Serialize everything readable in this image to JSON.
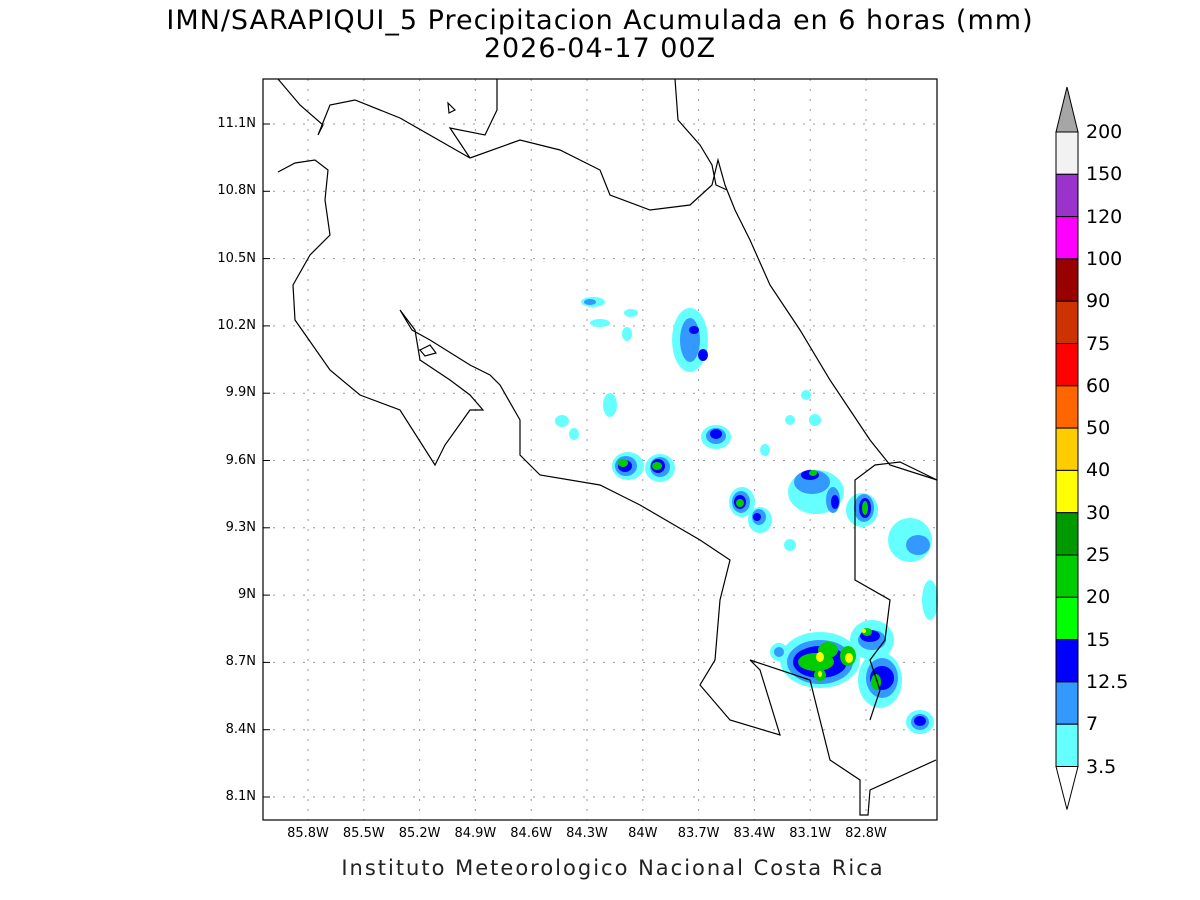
{
  "title": "IMN/SARAPIQUI_5 Precipitacion Acumulada en 6 horas (mm)",
  "subtitle": "2026-04-17 00Z",
  "footer": "Instituto Meteorologico Nacional Costa Rica",
  "lat_ticks": [
    "11.1N",
    "10.8N",
    "10.5N",
    "10.2N",
    "9.9N",
    "9.6N",
    "9.3N",
    "9N",
    "8.7N",
    "8.4N",
    "8.1N"
  ],
  "lon_ticks": [
    "85.8W",
    "85.5W",
    "85.2W",
    "84.9W",
    "84.6W",
    "84.3W",
    "84W",
    "83.7W",
    "83.4W",
    "83.1W",
    "82.8W"
  ],
  "colorbar": {
    "labels": [
      "200",
      "150",
      "120",
      "100",
      "90",
      "75",
      "60",
      "50",
      "40",
      "30",
      "25",
      "20",
      "15",
      "12.5",
      "7",
      "3.5"
    ],
    "colors": [
      "#f2f2f2",
      "#9933cc",
      "#ff00ff",
      "#990000",
      "#cc3300",
      "#ff0000",
      "#ff6600",
      "#ffcc00",
      "#ffff00",
      "#009900",
      "#00cc00",
      "#00ff00",
      "#0000ff",
      "#3399ff",
      "#66ffff"
    ],
    "over_color": "#a6a6a6",
    "under_color": "#ffffff"
  }
}
